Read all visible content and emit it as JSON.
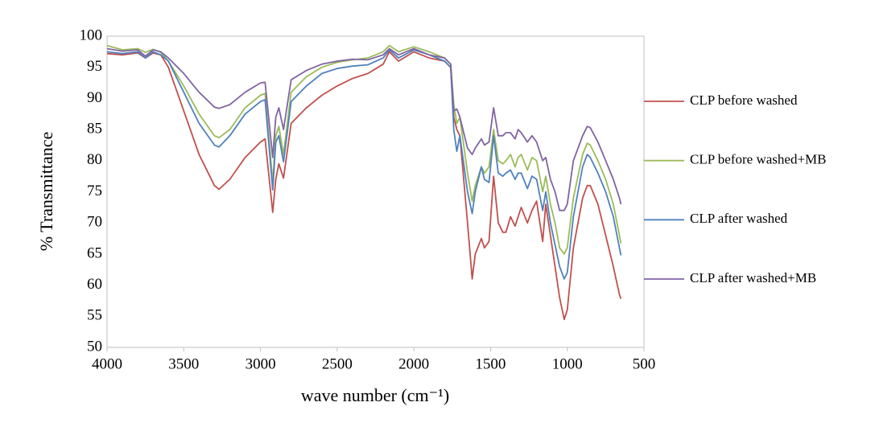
{
  "chart_data": {
    "type": "line",
    "x_label": "wave number (cm⁻¹)",
    "y_label": "% Transmittance",
    "xlim": [
      4000,
      500
    ],
    "xticks": [
      4000,
      3500,
      3000,
      2500,
      2000,
      1500,
      1000,
      500
    ],
    "ylim": [
      50,
      100
    ],
    "yticks": [
      50,
      55,
      60,
      65,
      70,
      75,
      80,
      85,
      90,
      95,
      100
    ],
    "grid": false,
    "legend": "right",
    "x": [
      4000,
      3900,
      3800,
      3750,
      3700,
      3650,
      3600,
      3500,
      3400,
      3300,
      3270,
      3200,
      3100,
      3000,
      2970,
      2920,
      2900,
      2880,
      2850,
      2800,
      2700,
      2600,
      2500,
      2400,
      2300,
      2200,
      2160,
      2100,
      2000,
      1900,
      1800,
      1760,
      1740,
      1720,
      1700,
      1650,
      1620,
      1600,
      1560,
      1540,
      1510,
      1480,
      1450,
      1420,
      1400,
      1370,
      1340,
      1320,
      1300,
      1260,
      1230,
      1200,
      1160,
      1140,
      1110,
      1080,
      1050,
      1020,
      1000,
      960,
      900,
      870,
      850,
      800,
      750,
      700,
      660,
      650
    ],
    "series": [
      {
        "name": "CLP before washed",
        "color": "#c0504d",
        "values": [
          97.2,
          97,
          97.3,
          96.5,
          97.3,
          97,
          95,
          88,
          81,
          76,
          75.4,
          77,
          80.5,
          83,
          83.5,
          71.7,
          77,
          79.5,
          77.2,
          86,
          88.5,
          90.5,
          92,
          93.2,
          94,
          95.5,
          97.5,
          96,
          97.5,
          96.5,
          96,
          95,
          87,
          85,
          84,
          70,
          61,
          65,
          67.5,
          66,
          67,
          77.5,
          70,
          68.5,
          68.5,
          71,
          69.5,
          71,
          72.5,
          70,
          72,
          73.5,
          67,
          73,
          68,
          63,
          58,
          54.5,
          56,
          66,
          74,
          76,
          76,
          73,
          68,
          63,
          58.5,
          57.8
        ]
      },
      {
        "name": "CLP before washed+MB",
        "color": "#9bbb59",
        "values": [
          98.5,
          97.8,
          98,
          97.4,
          97.9,
          97.4,
          96,
          92,
          87.5,
          84,
          83.7,
          85,
          88.5,
          90.5,
          90.8,
          76.5,
          84,
          85.5,
          81,
          91,
          93.5,
          95,
          95.8,
          96.2,
          96.5,
          97.5,
          98.5,
          97.5,
          98.3,
          97.5,
          96.5,
          95.5,
          89,
          86,
          87,
          78,
          73.5,
          76,
          79,
          78,
          79,
          85,
          80,
          79.5,
          80,
          81,
          79,
          80.5,
          81,
          78.5,
          80.5,
          80,
          75,
          77.5,
          73,
          70,
          66,
          65,
          66,
          74,
          81,
          82.8,
          82.5,
          80,
          77,
          73,
          68,
          66.7
        ]
      },
      {
        "name": "CLP after washed",
        "color": "#4f81bd",
        "values": [
          97.5,
          97.2,
          97.5,
          96.5,
          97.5,
          97,
          96,
          91,
          86,
          82.5,
          82.2,
          84,
          87.5,
          89.5,
          89.8,
          75.3,
          83,
          84,
          79.8,
          89.5,
          92,
          94,
          94.8,
          95.2,
          95.4,
          96.5,
          97.8,
          96.5,
          97.8,
          97,
          96,
          95,
          85,
          81.5,
          84,
          75,
          71.5,
          75,
          79,
          77,
          76.5,
          84,
          78,
          77.5,
          78,
          78.5,
          77,
          78,
          78,
          75.5,
          77.5,
          77,
          72,
          75,
          70,
          66.5,
          63,
          61,
          62,
          71,
          79,
          81,
          80.5,
          78,
          75,
          71,
          66,
          64.8
        ]
      },
      {
        "name": "CLP after washed+MB",
        "color": "#8064a2",
        "values": [
          98,
          97.6,
          97.8,
          96.8,
          97.8,
          97.5,
          96.5,
          94,
          91,
          88.6,
          88.4,
          89,
          91,
          92.5,
          92.6,
          80.5,
          87,
          88.5,
          85,
          93,
          94.5,
          95.5,
          96,
          96.3,
          96.2,
          97,
          98,
          97,
          98,
          97,
          96.5,
          95.5,
          88,
          88.3,
          87,
          82,
          81,
          82,
          83.5,
          82.5,
          83,
          88.5,
          84,
          84,
          84.5,
          84.5,
          83.5,
          85,
          84.5,
          83,
          84,
          83,
          80,
          80.5,
          77,
          75,
          72,
          72,
          73,
          80,
          84,
          85.5,
          85.3,
          83,
          80,
          77,
          74,
          73
        ]
      }
    ]
  }
}
